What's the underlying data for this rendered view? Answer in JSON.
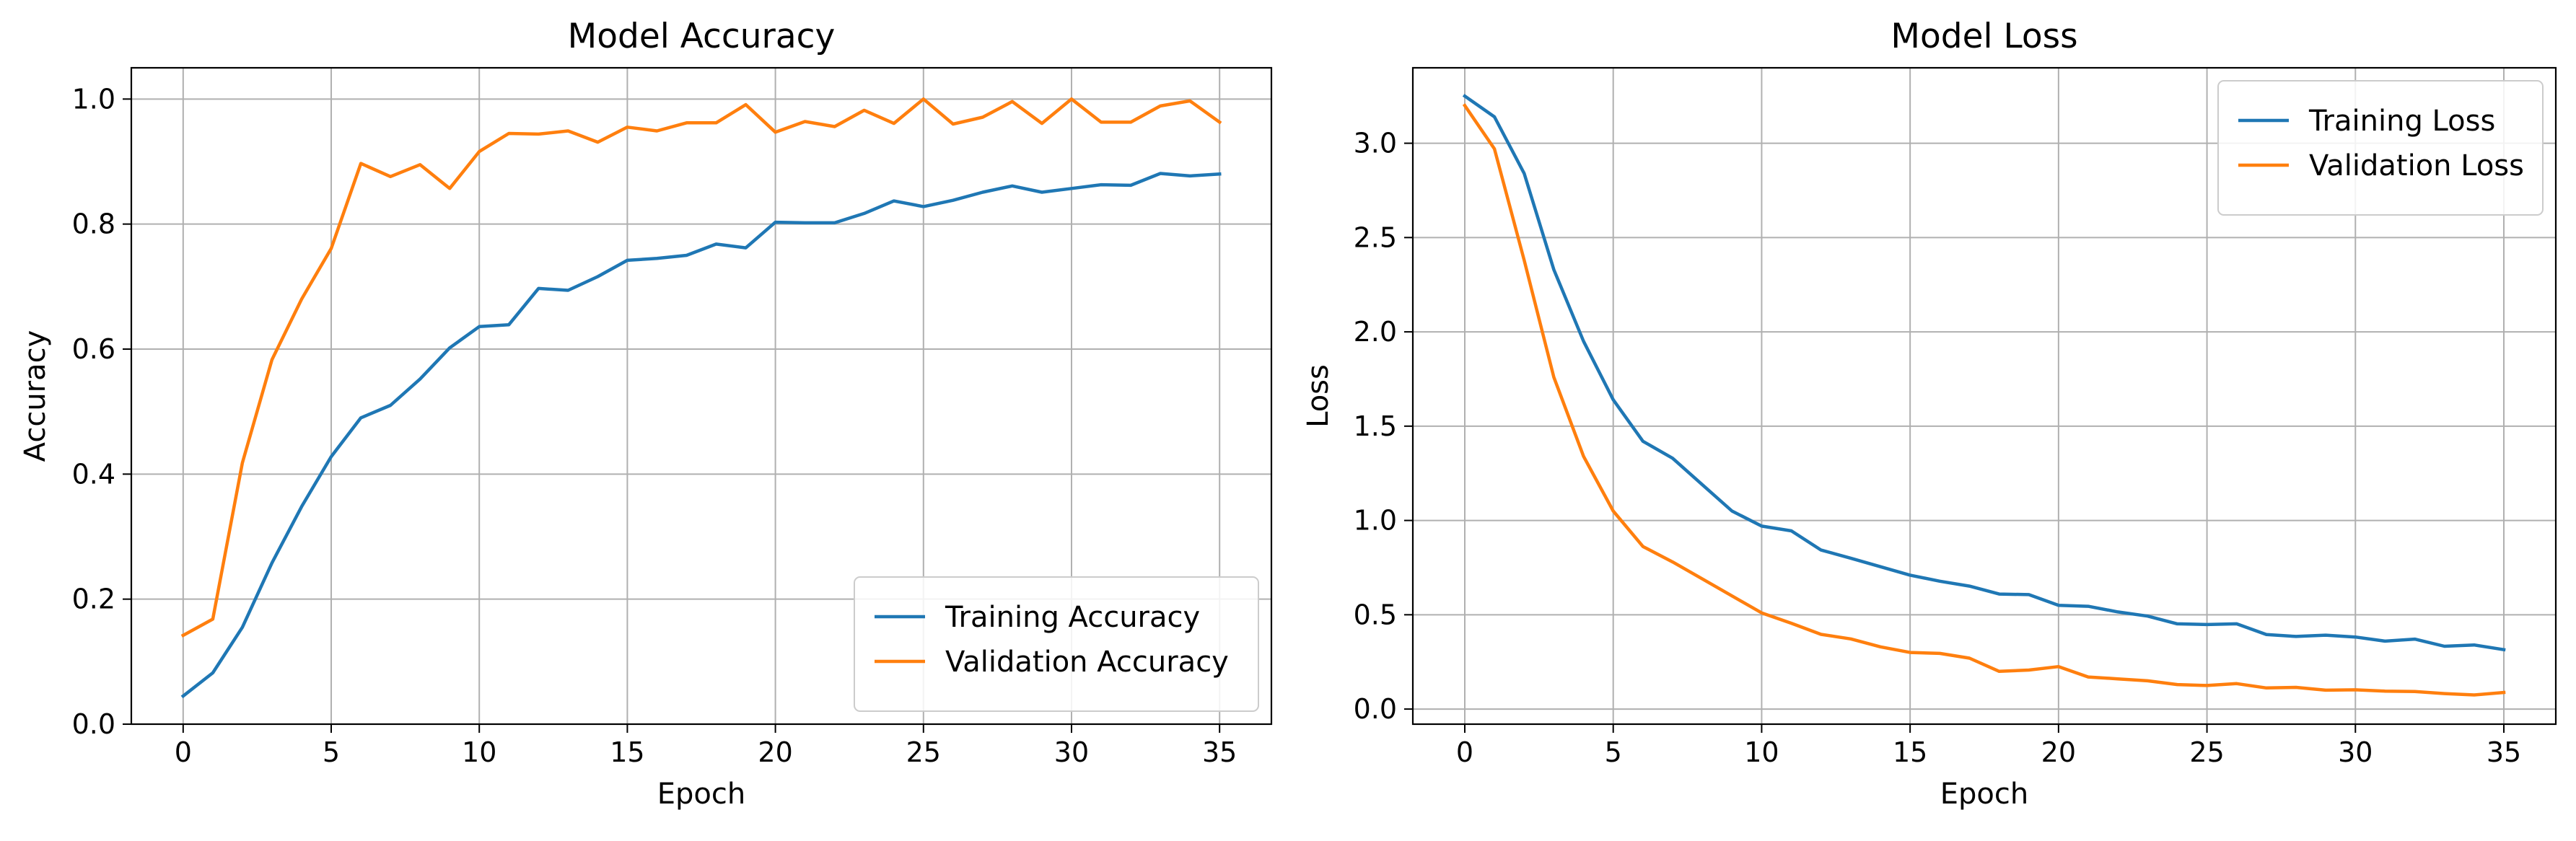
{
  "chart_data": [
    {
      "type": "line",
      "title": "Model Accuracy",
      "xlabel": "Epoch",
      "ylabel": "Accuracy",
      "xlim": [
        -1.75,
        36.75
      ],
      "ylim": [
        0.0,
        1.05
      ],
      "xticks": [
        0,
        5,
        10,
        15,
        20,
        25,
        30,
        35
      ],
      "xtick_labels": [
        "0",
        "5",
        "10",
        "15",
        "20",
        "25",
        "30",
        "35"
      ],
      "yticks": [
        0.0,
        0.2,
        0.4,
        0.6,
        0.8,
        1.0
      ],
      "ytick_labels": [
        "0.0",
        "0.2",
        "0.4",
        "0.6",
        "0.8",
        "1.0"
      ],
      "grid": true,
      "legend_position": "lower-right",
      "x": [
        0,
        1,
        2,
        3,
        4,
        5,
        6,
        7,
        8,
        9,
        10,
        11,
        12,
        13,
        14,
        15,
        16,
        17,
        18,
        19,
        20,
        21,
        22,
        23,
        24,
        25,
        26,
        27,
        28,
        29,
        30,
        31,
        32,
        33,
        34,
        35
      ],
      "series": [
        {
          "name": "Training Accuracy",
          "color": "#1f77b4",
          "values": [
            0.045,
            0.082,
            0.155,
            0.258,
            0.348,
            0.428,
            0.49,
            0.51,
            0.552,
            0.602,
            0.636,
            0.639,
            0.697,
            0.694,
            0.716,
            0.742,
            0.745,
            0.75,
            0.768,
            0.762,
            0.803,
            0.802,
            0.802,
            0.817,
            0.837,
            0.828,
            0.838,
            0.851,
            0.861,
            0.851,
            0.857,
            0.863,
            0.862,
            0.881,
            0.877,
            0.88
          ]
        },
        {
          "name": "Validation Accuracy",
          "color": "#ff7f0e",
          "values": [
            0.142,
            0.168,
            0.418,
            0.583,
            0.68,
            0.761,
            0.897,
            0.876,
            0.895,
            0.857,
            0.916,
            0.945,
            0.944,
            0.949,
            0.931,
            0.955,
            0.949,
            0.962,
            0.962,
            0.991,
            0.947,
            0.964,
            0.956,
            0.982,
            0.961,
            1.0,
            0.96,
            0.971,
            0.996,
            0.961,
            1.0,
            0.963,
            0.963,
            0.989,
            0.997,
            0.963
          ]
        }
      ]
    },
    {
      "type": "line",
      "title": "Model Loss",
      "xlabel": "Epoch",
      "ylabel": "Loss",
      "xlim": [
        -1.75,
        36.75
      ],
      "ylim": [
        -0.08,
        3.4
      ],
      "xticks": [
        0,
        5,
        10,
        15,
        20,
        25,
        30,
        35
      ],
      "xtick_labels": [
        "0",
        "5",
        "10",
        "15",
        "20",
        "25",
        "30",
        "35"
      ],
      "yticks": [
        0.0,
        0.5,
        1.0,
        1.5,
        2.0,
        2.5,
        3.0
      ],
      "ytick_labels": [
        "0.0",
        "0.5",
        "1.0",
        "1.5",
        "2.0",
        "2.5",
        "3.0"
      ],
      "grid": true,
      "legend_position": "upper-right",
      "x": [
        0,
        1,
        2,
        3,
        4,
        5,
        6,
        7,
        8,
        9,
        10,
        11,
        12,
        13,
        14,
        15,
        16,
        17,
        18,
        19,
        20,
        21,
        22,
        23,
        24,
        25,
        26,
        27,
        28,
        29,
        30,
        31,
        32,
        33,
        34,
        35
      ],
      "series": [
        {
          "name": "Training Loss",
          "color": "#1f77b4",
          "values": [
            3.25,
            3.14,
            2.84,
            2.33,
            1.95,
            1.64,
            1.42,
            1.33,
            1.19,
            1.05,
            0.97,
            0.945,
            0.843,
            0.8,
            0.755,
            0.71,
            0.678,
            0.652,
            0.61,
            0.607,
            0.55,
            0.545,
            0.515,
            0.493,
            0.452,
            0.448,
            0.452,
            0.395,
            0.385,
            0.392,
            0.382,
            0.36,
            0.371,
            0.333,
            0.34,
            0.315
          ]
        },
        {
          "name": "Validation Loss",
          "color": "#ff7f0e",
          "values": [
            3.2,
            2.97,
            2.38,
            1.76,
            1.34,
            1.05,
            0.862,
            0.78,
            0.69,
            0.6,
            0.51,
            0.455,
            0.396,
            0.372,
            0.33,
            0.3,
            0.295,
            0.27,
            0.2,
            0.207,
            0.225,
            0.17,
            0.16,
            0.15,
            0.13,
            0.125,
            0.135,
            0.112,
            0.115,
            0.1,
            0.102,
            0.095,
            0.093,
            0.082,
            0.075,
            0.088
          ]
        }
      ]
    }
  ]
}
